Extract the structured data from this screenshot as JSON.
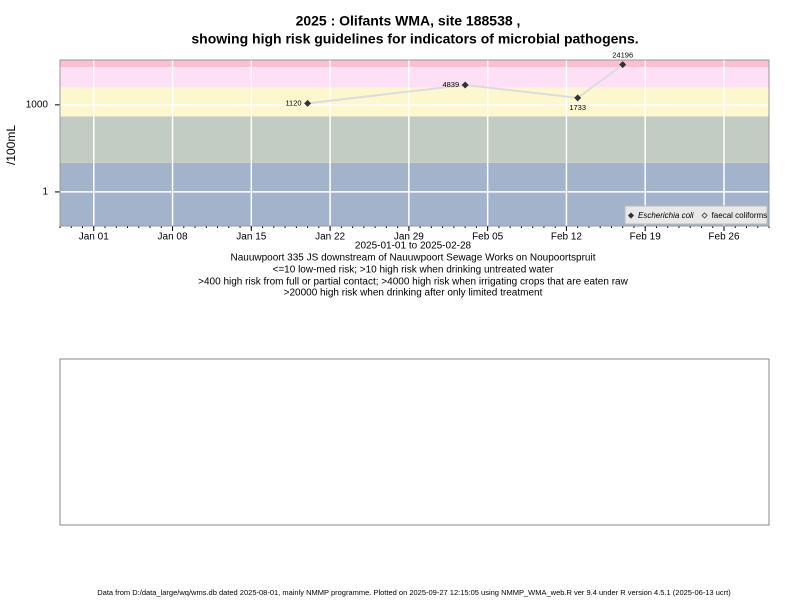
{
  "chart_data": {
    "type": "scatter-line",
    "log_y": true,
    "title": "2025 : Olifants WMA, site 188538 ,",
    "subtitle": "showing high risk guidelines for indicators of microbial pathogens.",
    "y_label": "/100mL",
    "x_label": "2025-01-01 to 2025-02-28",
    "notes": [
      "Nauuwpoort 335 JS downstream of Nauuwpoort Sewage Works on Noupoortspruit",
      "<=10 low-med risk; >10 high risk when drinking untreated water",
      ">400 high risk from full or partial contact; >4000 high risk when irrigating crops that are eaten raw",
      ">20000 high risk when drinking after only limited treatment"
    ],
    "footer": "Data from D:/data_large/wq/wms.db dated 2025-08-01, mainly NMMP programme. Plotted on 2025-09-27 12:15:05 using NMMP_WMA_web.R ver 9.4 under R version 4.5.1 (2025-06-13 ucrt)",
    "x": [
      "2025-01-20",
      "2025-02-03",
      "2025-02-13",
      "2025-02-17"
    ],
    "series": [
      {
        "name": "Escherichia coli",
        "color": "#333333",
        "line_color": "#dcdcdc",
        "values": [
          1120,
          4839,
          1733,
          24196
        ]
      },
      {
        "name": "faecal coliforms",
        "color": "#333333",
        "values": [
          null,
          null,
          null,
          null
        ]
      }
    ],
    "thresholds": [
      10,
      400,
      4000,
      20000
    ],
    "band_colors": [
      "#a3b3cc",
      "#c3ccc3",
      "#fdf7cf",
      "#fde0f5",
      "#fbbfd0"
    ],
    "xlim": [
      "2024-12-29",
      "2025-03-02"
    ],
    "xticks": [
      {
        "value": "2025-01-01",
        "label": "Jan 01"
      },
      {
        "value": "2025-01-08",
        "label": "Jan 08"
      },
      {
        "value": "2025-01-15",
        "label": "Jan 15"
      },
      {
        "value": "2025-01-22",
        "label": "Jan 22"
      },
      {
        "value": "2025-01-29",
        "label": "Jan 29"
      },
      {
        "value": "2025-02-05",
        "label": "Feb 05"
      },
      {
        "value": "2025-02-12",
        "label": "Feb 12"
      },
      {
        "value": "2025-02-19",
        "label": "Feb 19"
      },
      {
        "value": "2025-02-26",
        "label": "Feb 26"
      }
    ],
    "ylim": [
      0.067,
      35000
    ],
    "yticks": [
      1,
      1000
    ],
    "grid": true,
    "legend": "bottom-right"
  }
}
